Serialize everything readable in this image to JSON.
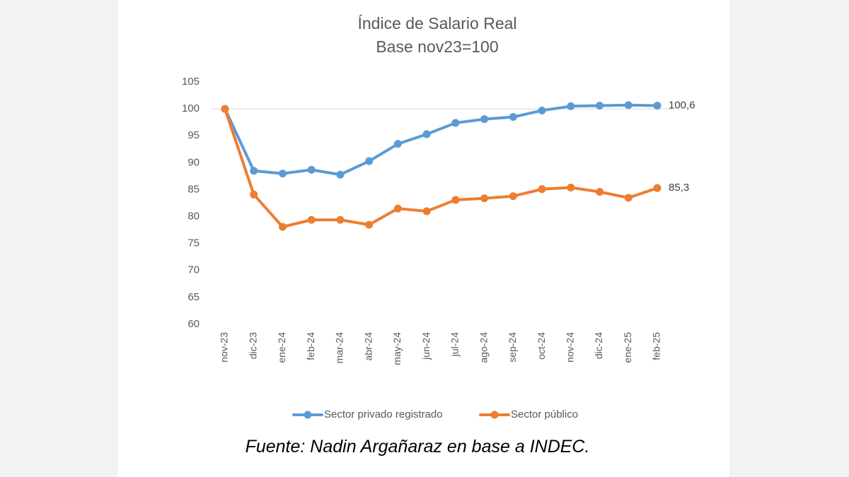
{
  "chart_data": {
    "type": "line",
    "title": "Índice de Salario Real",
    "subtitle": "Base nov23=100",
    "x": [
      "nov-23",
      "dic-23",
      "ene-24",
      "feb-24",
      "mar-24",
      "abr-24",
      "may-24",
      "jun-24",
      "jul-24",
      "ago-24",
      "sep-24",
      "oct-24",
      "nov-24",
      "dic-24",
      "ene-25",
      "feb-25"
    ],
    "yticks": [
      "60",
      "65",
      "70",
      "75",
      "80",
      "85",
      "90",
      "95",
      "100",
      "105"
    ],
    "ylim": [
      60,
      105
    ],
    "grid": "single line at 100",
    "legend_position": "bottom",
    "series": [
      {
        "name": "Sector privado registrado",
        "color": "#5b9bd5",
        "values": [
          100,
          88.5,
          88.0,
          88.7,
          87.8,
          90.3,
          93.5,
          95.3,
          97.4,
          98.1,
          98.5,
          99.7,
          100.5,
          100.6,
          100.7,
          100.6
        ],
        "end_label": "100,6"
      },
      {
        "name": "Sector público",
        "color": "#ed7d31",
        "values": [
          100,
          84.1,
          78.1,
          79.4,
          79.4,
          78.5,
          81.5,
          81.0,
          83.1,
          83.4,
          83.8,
          85.1,
          85.4,
          84.6,
          83.5,
          85.3
        ],
        "end_label": "85,3"
      }
    ],
    "source": "Fuente: Nadin Argañaraz en base a INDEC."
  }
}
